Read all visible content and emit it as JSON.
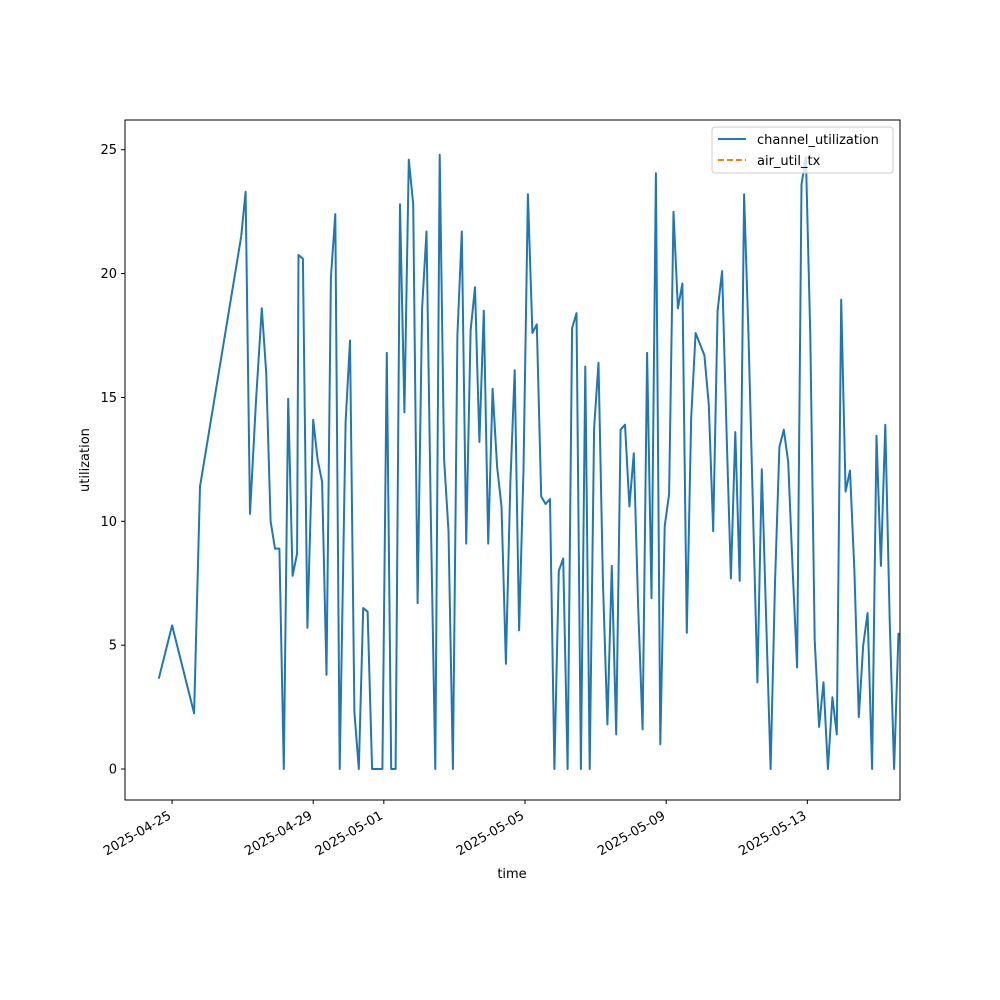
{
  "chart_data": {
    "type": "line",
    "title": "",
    "xlabel": "time",
    "ylabel": "utilization",
    "x_type": "date",
    "xlim": [
      "2025-04-23T16:00",
      "2025-05-15T15:00"
    ],
    "ylim": [
      -1.25,
      26.2
    ],
    "x_ticks": [
      "2025-04-25",
      "2025-04-29",
      "2025-05-01",
      "2025-05-05",
      "2025-05-09",
      "2025-05-13"
    ],
    "y_ticks": [
      0,
      5,
      10,
      15,
      20,
      25
    ],
    "grid": false,
    "legend_position": "top-right",
    "series": [
      {
        "name": "channel_utilization",
        "color": "#1f77b4",
        "style": "solid",
        "points": [
          [
            "2025-04-24T15:00",
            3.65
          ],
          [
            "2025-04-25T00:00",
            5.8
          ],
          [
            "2025-04-25T15:00",
            2.25
          ],
          [
            "2025-04-25T19:00",
            11.4
          ],
          [
            "2025-04-26T23:00",
            21.5
          ],
          [
            "2025-04-27T02:00",
            23.3
          ],
          [
            "2025-04-27T05:00",
            10.3
          ],
          [
            "2025-04-27T09:00",
            14.8
          ],
          [
            "2025-04-27T13:00",
            18.6
          ],
          [
            "2025-04-27T16:00",
            16.0
          ],
          [
            "2025-04-27T19:00",
            10.0
          ],
          [
            "2025-04-27T22:00",
            8.9
          ],
          [
            "2025-04-28T01:00",
            8.9
          ],
          [
            "2025-04-28T04:00",
            0.0
          ],
          [
            "2025-04-28T07:00",
            14.95
          ],
          [
            "2025-04-28T10:00",
            7.8
          ],
          [
            "2025-04-28T13:00",
            8.7
          ],
          [
            "2025-04-28T14:00",
            20.75
          ],
          [
            "2025-04-28T17:00",
            20.6
          ],
          [
            "2025-04-28T20:00",
            5.7
          ],
          [
            "2025-04-29T00:00",
            14.1
          ],
          [
            "2025-04-29T03:00",
            12.5
          ],
          [
            "2025-04-29T06:00",
            11.6
          ],
          [
            "2025-04-29T09:00",
            3.8
          ],
          [
            "2025-04-29T12:00",
            19.85
          ],
          [
            "2025-04-29T15:00",
            22.4
          ],
          [
            "2025-04-29T18:00",
            0.0
          ],
          [
            "2025-04-29T22:00",
            14.0
          ],
          [
            "2025-04-30T01:00",
            17.3
          ],
          [
            "2025-04-30T04:00",
            2.3
          ],
          [
            "2025-04-30T07:00",
            0.0
          ],
          [
            "2025-04-30T10:00",
            6.5
          ],
          [
            "2025-04-30T13:00",
            6.35
          ],
          [
            "2025-04-30T16:00",
            0.0
          ],
          [
            "2025-04-30T19:00",
            0.0
          ],
          [
            "2025-04-30T23:00",
            0.0
          ],
          [
            "2025-05-01T02:00",
            16.8
          ],
          [
            "2025-05-01T05:00",
            0.0
          ],
          [
            "2025-05-01T08:00",
            0.0
          ],
          [
            "2025-05-01T11:00",
            22.8
          ],
          [
            "2025-05-01T14:00",
            14.4
          ],
          [
            "2025-05-01T17:00",
            24.6
          ],
          [
            "2025-05-01T20:00",
            22.8
          ],
          [
            "2025-05-01T23:00",
            6.7
          ],
          [
            "2025-05-02T02:00",
            18.6
          ],
          [
            "2025-05-02T05:00",
            21.7
          ],
          [
            "2025-05-02T08:00",
            10.0
          ],
          [
            "2025-05-02T11:00",
            0.0
          ],
          [
            "2025-05-02T14:00",
            24.8
          ],
          [
            "2025-05-02T17:00",
            12.5
          ],
          [
            "2025-05-02T20:00",
            9.6
          ],
          [
            "2025-05-02T23:00",
            0.0
          ],
          [
            "2025-05-03T02:00",
            17.5
          ],
          [
            "2025-05-03T05:00",
            21.7
          ],
          [
            "2025-05-03T08:00",
            9.1
          ],
          [
            "2025-05-03T11:00",
            17.7
          ],
          [
            "2025-05-03T14:00",
            19.45
          ],
          [
            "2025-05-03T17:00",
            13.2
          ],
          [
            "2025-05-03T20:00",
            18.5
          ],
          [
            "2025-05-03T23:00",
            9.1
          ],
          [
            "2025-05-04T02:00",
            15.35
          ],
          [
            "2025-05-04T05:00",
            12.2
          ],
          [
            "2025-05-04T08:00",
            10.6
          ],
          [
            "2025-05-04T11:00",
            4.25
          ],
          [
            "2025-05-04T14:00",
            11.5
          ],
          [
            "2025-05-04T17:00",
            16.1
          ],
          [
            "2025-05-04T20:00",
            5.6
          ],
          [
            "2025-05-04T23:00",
            12.1
          ],
          [
            "2025-05-05T02:00",
            23.2
          ],
          [
            "2025-05-05T05:00",
            17.6
          ],
          [
            "2025-05-05T08:00",
            17.95
          ],
          [
            "2025-05-05T11:00",
            11.0
          ],
          [
            "2025-05-05T14:00",
            10.7
          ],
          [
            "2025-05-05T17:00",
            10.9
          ],
          [
            "2025-05-05T20:00",
            0.0
          ],
          [
            "2025-05-05T23:00",
            8.0
          ],
          [
            "2025-05-06T02:00",
            8.5
          ],
          [
            "2025-05-06T05:00",
            0.0
          ],
          [
            "2025-05-06T08:00",
            17.8
          ],
          [
            "2025-05-06T11:00",
            18.4
          ],
          [
            "2025-05-06T14:00",
            0.0
          ],
          [
            "2025-05-06T17:00",
            16.25
          ],
          [
            "2025-05-06T20:00",
            0.0
          ],
          [
            "2025-05-06T23:00",
            13.75
          ],
          [
            "2025-05-07T02:00",
            16.4
          ],
          [
            "2025-05-07T05:00",
            7.6
          ],
          [
            "2025-05-07T08:00",
            1.8
          ],
          [
            "2025-05-07T11:00",
            8.2
          ],
          [
            "2025-05-07T14:00",
            1.4
          ],
          [
            "2025-05-07T17:00",
            13.7
          ],
          [
            "2025-05-07T20:00",
            13.9
          ],
          [
            "2025-05-07T23:00",
            10.6
          ],
          [
            "2025-05-08T02:00",
            12.75
          ],
          [
            "2025-05-08T05:00",
            6.5
          ],
          [
            "2025-05-08T08:00",
            1.6
          ],
          [
            "2025-05-08T11:00",
            16.8
          ],
          [
            "2025-05-08T14:00",
            6.9
          ],
          [
            "2025-05-08T17:00",
            24.05
          ],
          [
            "2025-05-08T20:00",
            1.0
          ],
          [
            "2025-05-08T23:00",
            9.8
          ],
          [
            "2025-05-09T02:00",
            11.1
          ],
          [
            "2025-05-09T05:00",
            22.5
          ],
          [
            "2025-05-09T08:00",
            18.6
          ],
          [
            "2025-05-09T11:00",
            19.6
          ],
          [
            "2025-05-09T14:00",
            5.5
          ],
          [
            "2025-05-09T17:00",
            14.2
          ],
          [
            "2025-05-09T20:00",
            17.6
          ],
          [
            "2025-05-10T02:00",
            16.7
          ],
          [
            "2025-05-10T05:00",
            14.7
          ],
          [
            "2025-05-10T08:00",
            9.6
          ],
          [
            "2025-05-10T11:00",
            18.5
          ],
          [
            "2025-05-10T14:00",
            20.1
          ],
          [
            "2025-05-10T17:00",
            13.7
          ],
          [
            "2025-05-10T20:00",
            7.7
          ],
          [
            "2025-05-10T23:00",
            13.6
          ],
          [
            "2025-05-11T02:00",
            7.6
          ],
          [
            "2025-05-11T05:00",
            23.2
          ],
          [
            "2025-05-11T08:00",
            17.5
          ],
          [
            "2025-05-11T11:00",
            10.6
          ],
          [
            "2025-05-11T14:00",
            3.5
          ],
          [
            "2025-05-11T17:00",
            12.1
          ],
          [
            "2025-05-11T20:00",
            6.0
          ],
          [
            "2025-05-11T23:00",
            0.0
          ],
          [
            "2025-05-12T02:00",
            7.5
          ],
          [
            "2025-05-12T05:00",
            13.0
          ],
          [
            "2025-05-12T08:00",
            13.7
          ],
          [
            "2025-05-12T11:00",
            12.4
          ],
          [
            "2025-05-12T14:00",
            8.1
          ],
          [
            "2025-05-12T17:00",
            4.1
          ],
          [
            "2025-05-12T20:00",
            23.6
          ],
          [
            "2025-05-12T23:00",
            24.7
          ],
          [
            "2025-05-13T02:00",
            17.5
          ],
          [
            "2025-05-13T05:00",
            5.2
          ],
          [
            "2025-05-13T08:00",
            1.7
          ],
          [
            "2025-05-13T11:00",
            3.5
          ],
          [
            "2025-05-13T14:00",
            0.0
          ],
          [
            "2025-05-13T17:00",
            2.9
          ],
          [
            "2025-05-13T20:00",
            1.4
          ],
          [
            "2025-05-13T23:00",
            18.95
          ],
          [
            "2025-05-14T02:00",
            11.2
          ],
          [
            "2025-05-14T05:00",
            12.05
          ],
          [
            "2025-05-14T08:00",
            8.0
          ],
          [
            "2025-05-14T11:00",
            2.1
          ],
          [
            "2025-05-14T14:00",
            5.0
          ],
          [
            "2025-05-14T17:00",
            6.3
          ],
          [
            "2025-05-14T20:00",
            0.0
          ],
          [
            "2025-05-14T23:00",
            13.45
          ],
          [
            "2025-05-15T02:00",
            8.2
          ],
          [
            "2025-05-15T05:00",
            13.9
          ],
          [
            "2025-05-15T08:00",
            6.0
          ],
          [
            "2025-05-15T11:00",
            0.0
          ],
          [
            "2025-05-15T14:00",
            5.5
          ]
        ]
      },
      {
        "name": "air_util_tx",
        "color": "#ff7f0e",
        "style": "dashed",
        "points": []
      }
    ]
  }
}
